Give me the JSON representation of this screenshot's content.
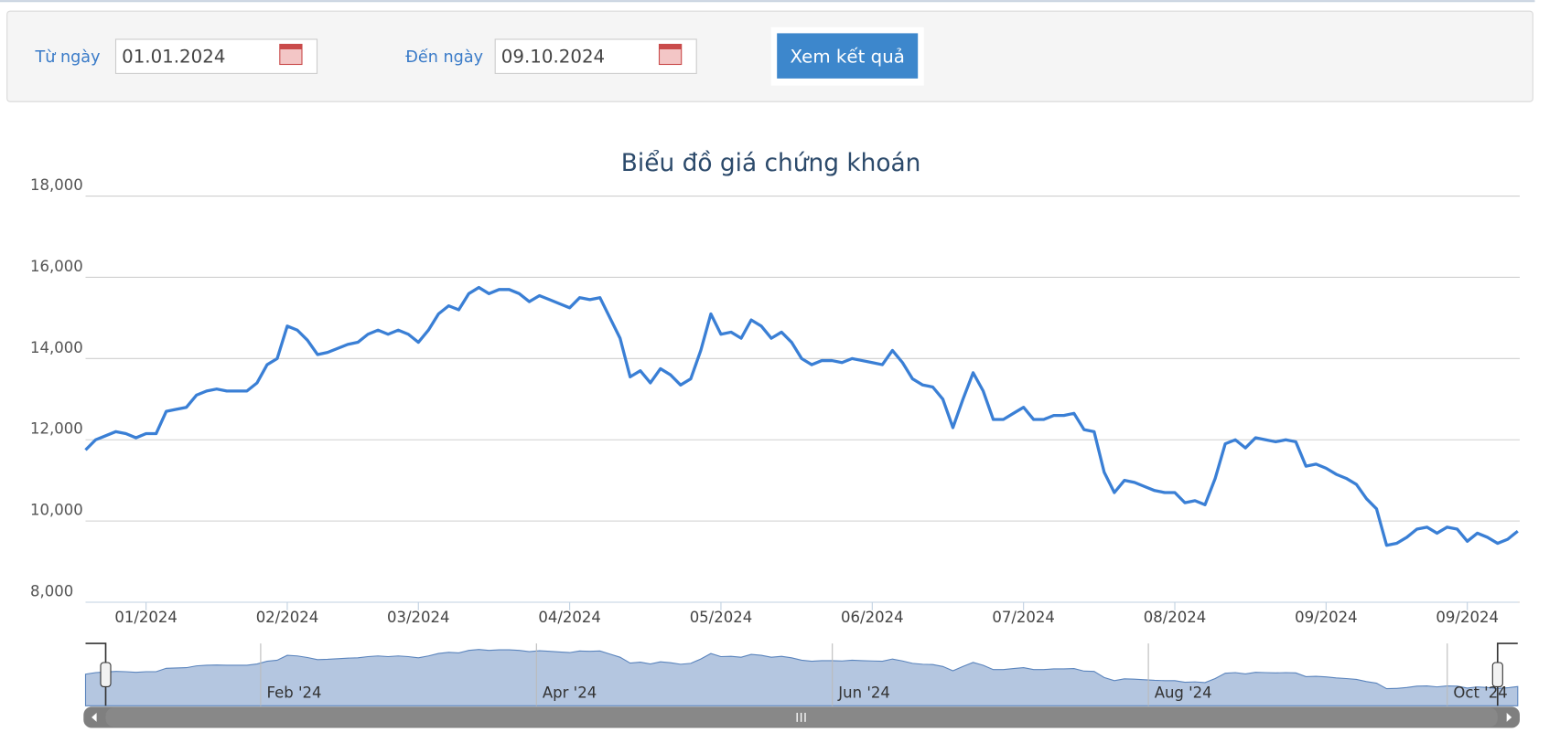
{
  "form": {
    "from_label": "Từ ngày",
    "from_value": "01.01.2024",
    "to_label": "Đến ngày",
    "to_value": "09.10.2024",
    "button": "Xem kết quả"
  },
  "chart_data": {
    "type": "line",
    "title": "Biểu đồ giá chứng khoán",
    "color": "#3a7fd5",
    "grid": true,
    "ylim": [
      8000,
      18000
    ],
    "yticks": [
      {
        "value": 8000,
        "label": "8,000"
      },
      {
        "value": 10000,
        "label": "10,000"
      },
      {
        "value": 12000,
        "label": "12,000"
      },
      {
        "value": 14000,
        "label": "14,000"
      },
      {
        "value": 16000,
        "label": "16,000"
      },
      {
        "value": 18000,
        "label": "18,000"
      }
    ],
    "categories": [
      null,
      null,
      null,
      null,
      null,
      null,
      "01/2024",
      null,
      null,
      null,
      null,
      null,
      null,
      null,
      null,
      null,
      null,
      null,
      null,
      null,
      "02/2024",
      null,
      null,
      null,
      null,
      null,
      null,
      null,
      null,
      null,
      null,
      null,
      null,
      "03/2024",
      null,
      null,
      null,
      null,
      null,
      null,
      null,
      null,
      null,
      null,
      null,
      null,
      null,
      null,
      "04/2024",
      null,
      null,
      null,
      null,
      null,
      null,
      null,
      null,
      null,
      null,
      null,
      null,
      null,
      null,
      "05/2024",
      null,
      null,
      null,
      null,
      null,
      null,
      null,
      null,
      null,
      null,
      null,
      null,
      null,
      null,
      "06/2024",
      null,
      null,
      null,
      null,
      null,
      null,
      null,
      null,
      null,
      null,
      null,
      null,
      null,
      null,
      "07/2024",
      null,
      null,
      null,
      null,
      null,
      null,
      null,
      null,
      null,
      null,
      null,
      null,
      null,
      null,
      "08/2024",
      null,
      null,
      null,
      null,
      null,
      null,
      null,
      null,
      null,
      null,
      null,
      null,
      null,
      null,
      "09/2024",
      null,
      null,
      null,
      null,
      null,
      null,
      null,
      null,
      null,
      null,
      null,
      null,
      null,
      "09/2024",
      null,
      null,
      null,
      null,
      null
    ],
    "values": [
      11750,
      12000,
      12100,
      12200,
      12150,
      12050,
      12150,
      12150,
      12700,
      12750,
      12800,
      13100,
      13200,
      13250,
      13200,
      13200,
      13200,
      13400,
      13850,
      14000,
      14800,
      14700,
      14450,
      14100,
      14150,
      14250,
      14350,
      14400,
      14600,
      14700,
      14600,
      14700,
      14600,
      14400,
      14700,
      15100,
      15300,
      15200,
      15600,
      15750,
      15600,
      15700,
      15700,
      15600,
      15400,
      15550,
      15450,
      15350,
      15250,
      15500,
      15450,
      15500,
      15000,
      14500,
      13550,
      13700,
      13400,
      13750,
      13600,
      13350,
      13500,
      14200,
      15100,
      14600,
      14650,
      14500,
      14950,
      14800,
      14500,
      14650,
      14400,
      14000,
      13850,
      13950,
      13950,
      13900,
      14000,
      13950,
      13900,
      13850,
      14200,
      13900,
      13500,
      13350,
      13300,
      13000,
      12300,
      13000,
      13650,
      13200,
      12500,
      12500,
      12650,
      12800,
      12500,
      12500,
      12600,
      12600,
      12650,
      12250,
      12200,
      11200,
      10700,
      11000,
      10950,
      10850,
      10750,
      10700,
      10700,
      10450,
      10500,
      10400,
      11050,
      11900,
      12000,
      11800,
      12050,
      12000,
      11950,
      12000,
      11950,
      11350,
      11400,
      11300,
      11150,
      11050,
      10900,
      10550,
      10300,
      9400,
      9450,
      9600,
      9800,
      9850,
      9700,
      9850,
      9800,
      9500,
      9700,
      9600,
      9450,
      9550,
      9750
    ],
    "navigator_labels": [
      "Feb '24",
      "Apr '24",
      "Jun '24",
      "Aug '24",
      "Oct '24"
    ]
  }
}
